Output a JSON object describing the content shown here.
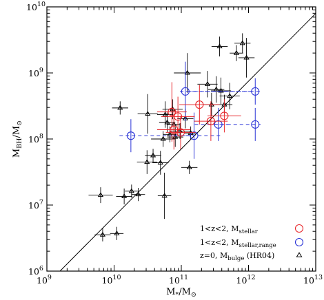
{
  "chart_data": {
    "type": "scatter",
    "x_scale": "log",
    "y_scale": "log",
    "xlim_exp": [
      9,
      13
    ],
    "ylim_exp": [
      6,
      10
    ],
    "x_ticks": [
      {
        "base": "10",
        "exp": "9"
      },
      {
        "base": "10",
        "exp": "10"
      },
      {
        "base": "10",
        "exp": "11"
      },
      {
        "base": "10",
        "exp": "12"
      },
      {
        "base": "10",
        "exp": "13"
      }
    ],
    "y_ticks": [
      {
        "base": "10",
        "exp": "6"
      },
      {
        "base": "10",
        "exp": "7"
      },
      {
        "base": "10",
        "exp": "8"
      },
      {
        "base": "10",
        "exp": "9"
      },
      {
        "base": "10",
        "exp": "10"
      }
    ],
    "xlabel": {
      "main": "M",
      "sub": "*",
      "mid": "/M",
      "sub2": "⊙"
    },
    "ylabel": {
      "main": "M",
      "sub": "BH",
      "mid": "/M",
      "sub2": "⊙"
    },
    "one_to_one_line": {
      "x": [
        9,
        13
      ],
      "y": [
        5.8,
        9.9
      ]
    },
    "colors": {
      "stellar": "#e8272b",
      "range": "#2933d6",
      "local": "#000000"
    },
    "legend": [
      {
        "text": "1<z<2,  M",
        "sub": "stellar",
        "after": "",
        "marker": "circle",
        "color": "#e8272b"
      },
      {
        "text": "1<z<2,  M",
        "sub": "stellar,range",
        "after": "",
        "marker": "circle",
        "color": "#2933d6"
      },
      {
        "text": "z=0,  M",
        "sub": "bulge",
        "after": "  (HR04)",
        "marker": "triangle",
        "color": "#000000"
      }
    ],
    "series_local": [
      {
        "x": 9.8,
        "y": 7.15,
        "xerr": 0.18,
        "yerr": 0.12
      },
      {
        "x": 9.83,
        "y": 6.55,
        "xerr": 0.12,
        "yerr": 0.1
      },
      {
        "x": 10.04,
        "y": 6.57,
        "xerr": 0.1,
        "yerr": 0.1
      },
      {
        "x": 10.15,
        "y": 7.13,
        "xerr": 0.12,
        "yerr": 0.12
      },
      {
        "x": 10.26,
        "y": 7.21,
        "xerr": 0.1,
        "yerr": 0.1
      },
      {
        "x": 10.36,
        "y": 7.16,
        "xerr": 0.1,
        "yerr": 0.1
      },
      {
        "x": 10.09,
        "y": 8.47,
        "xerr": 0.12,
        "yerr": 0.1
      },
      {
        "x": 10.49,
        "y": 7.65,
        "xerr": 0.15,
        "yerr": 0.18
      },
      {
        "x": 10.58,
        "y": 7.75,
        "xerr": 0.12,
        "yerr": 0.1
      },
      {
        "x": 10.69,
        "y": 7.64,
        "xerr": 0.12,
        "yerr": 0.18
      },
      {
        "x": 10.75,
        "y": 7.14,
        "xerr": 0.1,
        "yerr": 0.35
      },
      {
        "x": 10.5,
        "y": 8.38,
        "xerr": 0.15,
        "yerr": 0.3
      },
      {
        "x": 10.76,
        "y": 8.37,
        "xerr": 0.12,
        "yerr": 0.2
      },
      {
        "x": 10.73,
        "y": 8.0,
        "xerr": 0.18,
        "yerr": 0.12
      },
      {
        "x": 10.79,
        "y": 8.25,
        "xerr": 0.12,
        "yerr": 0.15
      },
      {
        "x": 10.87,
        "y": 8.45,
        "xerr": 0.15,
        "yerr": 0.15
      },
      {
        "x": 10.83,
        "y": 8.07,
        "xerr": 0.1,
        "yerr": 0.12
      },
      {
        "x": 10.89,
        "y": 8.22,
        "xerr": 0.1,
        "yerr": 0.12
      },
      {
        "x": 10.91,
        "y": 8.03,
        "xerr": 0.12,
        "yerr": 0.15
      },
      {
        "x": 10.98,
        "y": 8.12,
        "xerr": 0.15,
        "yerr": 0.12
      },
      {
        "x": 11.06,
        "y": 8.31,
        "xerr": 0.12,
        "yerr": 0.15
      },
      {
        "x": 11.14,
        "y": 8.09,
        "xerr": 0.1,
        "yerr": 0.1
      },
      {
        "x": 11.12,
        "y": 7.57,
        "xerr": 0.12,
        "yerr": 0.1
      },
      {
        "x": 11.09,
        "y": 9.0,
        "xerr": 0.2,
        "yerr": 0.3
      },
      {
        "x": 11.39,
        "y": 8.83,
        "xerr": 0.15,
        "yerr": 0.2
      },
      {
        "x": 11.45,
        "y": 8.52,
        "xerr": 0.12,
        "yerr": 0.18
      },
      {
        "x": 11.52,
        "y": 8.75,
        "xerr": 0.12,
        "yerr": 0.2
      },
      {
        "x": 11.59,
        "y": 8.73,
        "xerr": 0.15,
        "yerr": 0.2
      },
      {
        "x": 11.64,
        "y": 8.52,
        "xerr": 0.12,
        "yerr": 0.15
      },
      {
        "x": 11.72,
        "y": 8.65,
        "xerr": 0.15,
        "yerr": 0.2
      },
      {
        "x": 11.57,
        "y": 9.4,
        "xerr": 0.12,
        "yerr": 0.15
      },
      {
        "x": 11.82,
        "y": 9.3,
        "xerr": 0.1,
        "yerr": 0.12
      },
      {
        "x": 11.91,
        "y": 9.45,
        "xerr": 0.12,
        "yerr": 0.15
      },
      {
        "x": 11.97,
        "y": 9.23,
        "xerr": 0.12,
        "yerr": 0.3
      }
    ],
    "series_stellar": [
      {
        "x": 10.86,
        "y": 8.41,
        "xerr": 0.22,
        "yerr": 0.45
      },
      {
        "x": 10.89,
        "y": 8.14,
        "xerr": 0.25,
        "yerr": 0.3
      },
      {
        "x": 10.95,
        "y": 8.34,
        "xerr": 0.25,
        "yerr": 0.3
      },
      {
        "x": 10.99,
        "y": 8.1,
        "xerr": 0.22,
        "yerr": 0.25
      },
      {
        "x": 11.27,
        "y": 8.52,
        "xerr": 0.3,
        "yerr": 0.3
      },
      {
        "x": 11.44,
        "y": 8.27,
        "xerr": 0.25,
        "yerr": 0.3
      },
      {
        "x": 11.64,
        "y": 8.35,
        "xerr": 0.25,
        "yerr": 0.25
      }
    ],
    "series_range": [
      {
        "x": 10.25,
        "y": 8.05,
        "x0": 10.08,
        "x1": 11.2,
        "yerr": 0.25
      },
      {
        "x": 11.06,
        "y": 8.72,
        "x0": 10.98,
        "x1": 12.08,
        "yerr": 0.45
      },
      {
        "x": 12.1,
        "y": 8.72,
        "x0": 11.1,
        "x1": 12.18,
        "yerr": 0.2
      },
      {
        "x": 11.19,
        "y": 8.05,
        "x0": 10.88,
        "x1": 11.6,
        "yerr": 0.35
      },
      {
        "x": 11.55,
        "y": 8.22,
        "x0": 11.2,
        "x1": 11.7,
        "yerr": 0.25
      },
      {
        "x": 12.1,
        "y": 8.22,
        "x0": 11.5,
        "x1": 12.18,
        "yerr": 0.25
      }
    ]
  }
}
